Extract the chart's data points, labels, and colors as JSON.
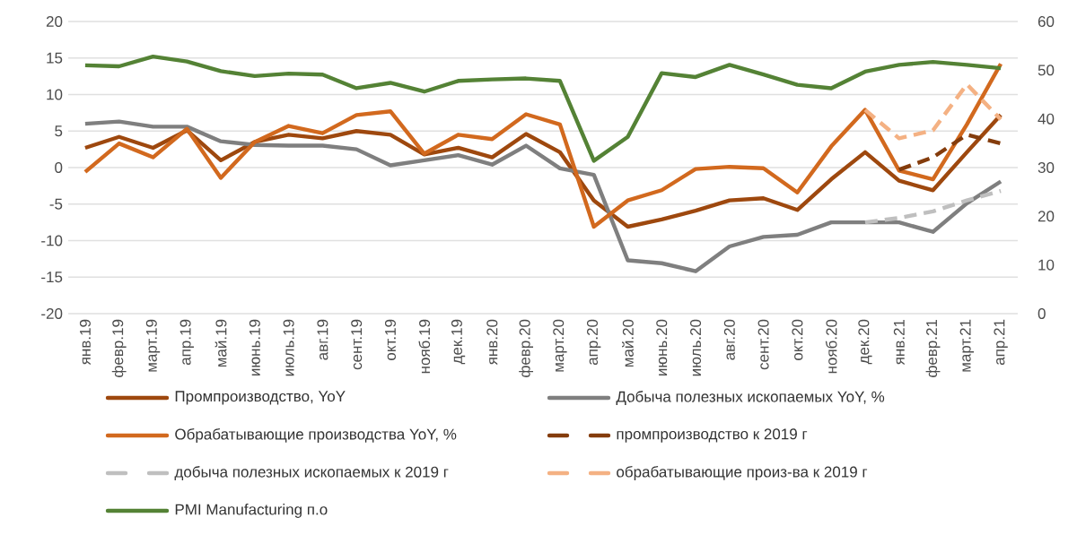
{
  "chart_data": {
    "type": "line",
    "categories": [
      "янв.19",
      "февр.19",
      "март.19",
      "апр.19",
      "май.19",
      "июнь.19",
      "июль.19",
      "авг.19",
      "сент.19",
      "окт.19",
      "нояб.19",
      "дек.19",
      "янв.20",
      "февр.20",
      "март.20",
      "апр.20",
      "май.20",
      "июнь.20",
      "июль.20",
      "авг.20",
      "сент.20",
      "окт.20",
      "нояб.20",
      "дек.20",
      "янв.21",
      "февр.21",
      "март.21",
      "апр.21"
    ],
    "series": [
      {
        "name": "Промпроизводство, YoY",
        "color": "#9e480e",
        "values": [
          2.7,
          4.2,
          2.7,
          5.1,
          1.0,
          3.5,
          4.5,
          4.0,
          5.0,
          4.5,
          1.8,
          2.7,
          1.4,
          4.6,
          2.1,
          -4.5,
          -8.1,
          -7.1,
          -5.9,
          -4.5,
          -4.2,
          -5.8,
          -1.6,
          2.1,
          -1.8,
          -3.1,
          2.1,
          7.2
        ]
      },
      {
        "name": "Добыча полезных ископаемых YoY, %",
        "color": "#7f7f7f",
        "values": [
          6.0,
          6.3,
          5.6,
          5.6,
          3.6,
          3.1,
          3.0,
          3.0,
          2.5,
          0.3,
          1.0,
          1.7,
          0.4,
          3.0,
          -0.1,
          -1.0,
          -12.7,
          -13.1,
          -14.2,
          -10.8,
          -9.5,
          -9.2,
          -7.5,
          -7.5,
          -7.5,
          -8.8,
          -4.9,
          -1.9
        ]
      },
      {
        "name": "Обрабатывающие производства YoY, %",
        "color": "#d2691e",
        "values": [
          -0.6,
          3.3,
          1.4,
          5.3,
          -1.4,
          3.5,
          5.7,
          4.7,
          7.2,
          7.7,
          1.9,
          4.5,
          3.9,
          7.3,
          5.9,
          -8.1,
          -4.5,
          -3.1,
          -0.2,
          0.1,
          -0.1,
          -3.4,
          2.9,
          7.9,
          -0.4,
          -1.6,
          5.9,
          14.2
        ]
      },
      {
        "name": "промпроизводство к 2019 г",
        "color": "#843c0c",
        "line_style": "dashed",
        "values": [
          null,
          null,
          null,
          null,
          null,
          null,
          null,
          null,
          null,
          null,
          null,
          null,
          null,
          null,
          null,
          null,
          null,
          null,
          null,
          null,
          null,
          null,
          null,
          null,
          -0.3,
          1.4,
          4.5,
          3.3
        ]
      },
      {
        "name": "добыча полезных ископаемых к 2019 г",
        "color": "#bfbfbf",
        "line_style": "dashed",
        "values": [
          null,
          null,
          null,
          null,
          null,
          null,
          null,
          null,
          null,
          null,
          null,
          null,
          null,
          null,
          null,
          null,
          null,
          null,
          null,
          null,
          null,
          null,
          null,
          -7.5,
          -6.9,
          -6.0,
          -4.5,
          -3.2
        ]
      },
      {
        "name": "обрабатывающие произ-ва к 2019 г",
        "color": "#f4b183",
        "line_style": "dashed",
        "values": [
          null,
          null,
          null,
          null,
          null,
          null,
          null,
          null,
          null,
          null,
          null,
          null,
          null,
          null,
          null,
          null,
          null,
          null,
          null,
          null,
          null,
          null,
          null,
          7.9,
          4.0,
          5.1,
          11.4,
          6.6
        ]
      },
      {
        "name": "PMI Manufacturing п.о",
        "color": "#548235",
        "axis": "y2",
        "values": [
          51.0,
          50.8,
          52.8,
          51.8,
          49.8,
          48.8,
          49.3,
          49.1,
          46.3,
          47.4,
          45.6,
          47.8,
          48.1,
          48.3,
          47.8,
          31.4,
          36.3,
          49.4,
          48.6,
          51.1,
          49.1,
          47.0,
          46.3,
          49.7,
          51.1,
          51.7,
          51.1,
          50.4
        ]
      }
    ],
    "ylim": [
      -20,
      20
    ],
    "yticks": [
      -20,
      -15,
      -10,
      -5,
      0,
      5,
      10,
      15,
      20
    ],
    "y2lim": [
      0,
      60
    ],
    "y2ticks": [
      0,
      10,
      20,
      30,
      40,
      50,
      60
    ],
    "grid": "y",
    "legend": "bottom",
    "line_style": "solid",
    "marker": "none"
  }
}
